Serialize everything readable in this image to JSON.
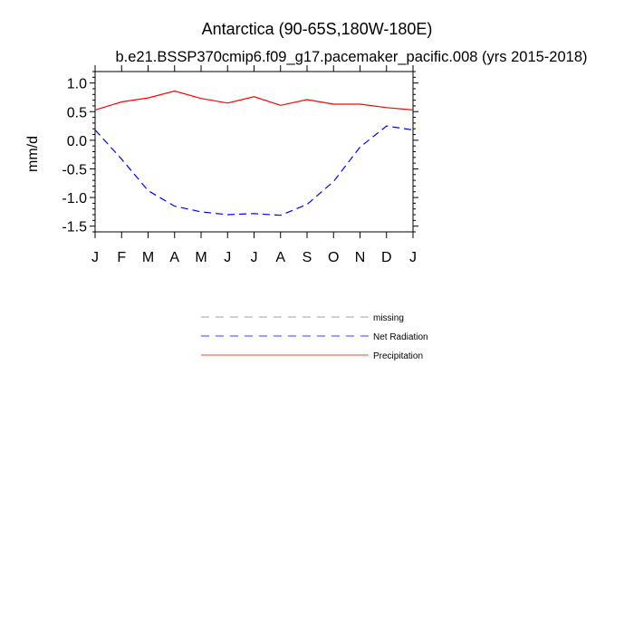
{
  "chart_data": {
    "type": "line",
    "title": "Antarctica (90-65S,180W-180E)",
    "subtitle": "b.e21.BSSP370cmip6.f09_g17.pacemaker_pacific.008 (yrs 2015-2018)",
    "xlabel": "",
    "ylabel": "mm/d",
    "categories": [
      "J",
      "F",
      "M",
      "A",
      "M",
      "J",
      "J",
      "A",
      "S",
      "O",
      "N",
      "D",
      "J"
    ],
    "ylim": [
      -1.6,
      1.2
    ],
    "yticks": [
      1.0,
      0.5,
      0.0,
      -0.5,
      -1.0,
      -1.5
    ],
    "ytick_labels": [
      "1.0",
      "0.5",
      "0.0",
      "-0.5",
      "-1.0",
      "-1.5"
    ],
    "grid": false,
    "legend_position": "bottom-center",
    "series": [
      {
        "name": "Net Radiation",
        "color": "#0000ff",
        "style": "dashed",
        "values": [
          0.18,
          -0.33,
          -0.88,
          -1.15,
          -1.25,
          -1.3,
          -1.28,
          -1.31,
          -1.12,
          -0.72,
          -0.12,
          0.25,
          0.18
        ]
      },
      {
        "name": "Precipitation",
        "color": "#ff0000",
        "style": "solid",
        "values": [
          0.53,
          0.67,
          0.74,
          0.86,
          0.73,
          0.65,
          0.76,
          0.61,
          0.71,
          0.63,
          0.63,
          0.57,
          0.53
        ]
      }
    ]
  },
  "legend": [
    {
      "label": "missing",
      "color": "#808080",
      "style": "dashed"
    },
    {
      "label": "Net Radiation",
      "color": "#0000ff",
      "style": "dashed"
    },
    {
      "label": "Precipitation",
      "color": "#ff0000",
      "style": "solid"
    }
  ]
}
